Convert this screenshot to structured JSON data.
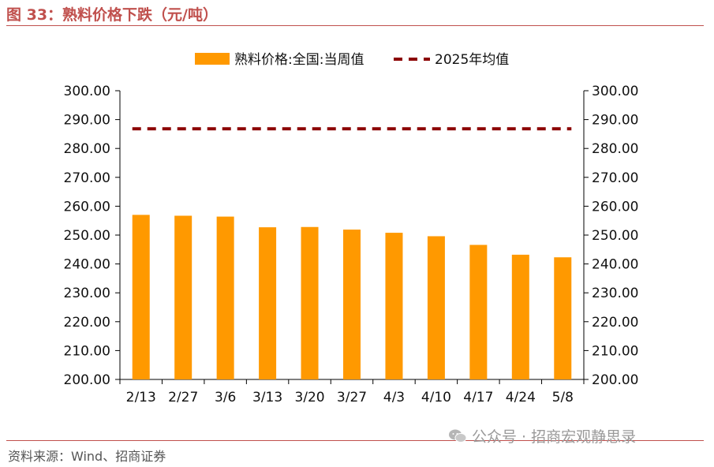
{
  "header": {
    "title": "图 33：熟料价格下跌（元/吨）"
  },
  "footer": {
    "source": "资料来源：Wind、招商证券",
    "watermark": "公众号 · 招商宏观静思录"
  },
  "colors": {
    "bar": "#ff9900",
    "avg_line": "#8b0000",
    "accent": "#c0504d"
  },
  "chart_data": {
    "type": "bar",
    "categories": [
      "2/13",
      "2/27",
      "3/6",
      "3/13",
      "3/20",
      "3/27",
      "4/3",
      "4/10",
      "4/17",
      "4/24",
      "5/8"
    ],
    "series": [
      {
        "name": "熟料价格:全国:当周值",
        "type": "bar",
        "values": [
          257.0,
          256.7,
          256.4,
          252.7,
          252.8,
          251.9,
          250.8,
          249.6,
          246.6,
          243.2,
          242.3
        ]
      },
      {
        "name": "2025年均值",
        "type": "line-dashed",
        "values": [
          286.8,
          286.8,
          286.8,
          286.8,
          286.8,
          286.8,
          286.8,
          286.8,
          286.8,
          286.8,
          286.8
        ]
      }
    ],
    "y_ticks": [
      "200.00",
      "210.00",
      "220.00",
      "230.00",
      "240.00",
      "250.00",
      "260.00",
      "270.00",
      "280.00",
      "290.00",
      "300.00"
    ],
    "ylim": [
      200,
      300
    ],
    "y2lim": [
      200,
      300
    ],
    "title": "",
    "xlabel": "",
    "ylabel": "",
    "grid": false,
    "legend_position": "top-center"
  }
}
